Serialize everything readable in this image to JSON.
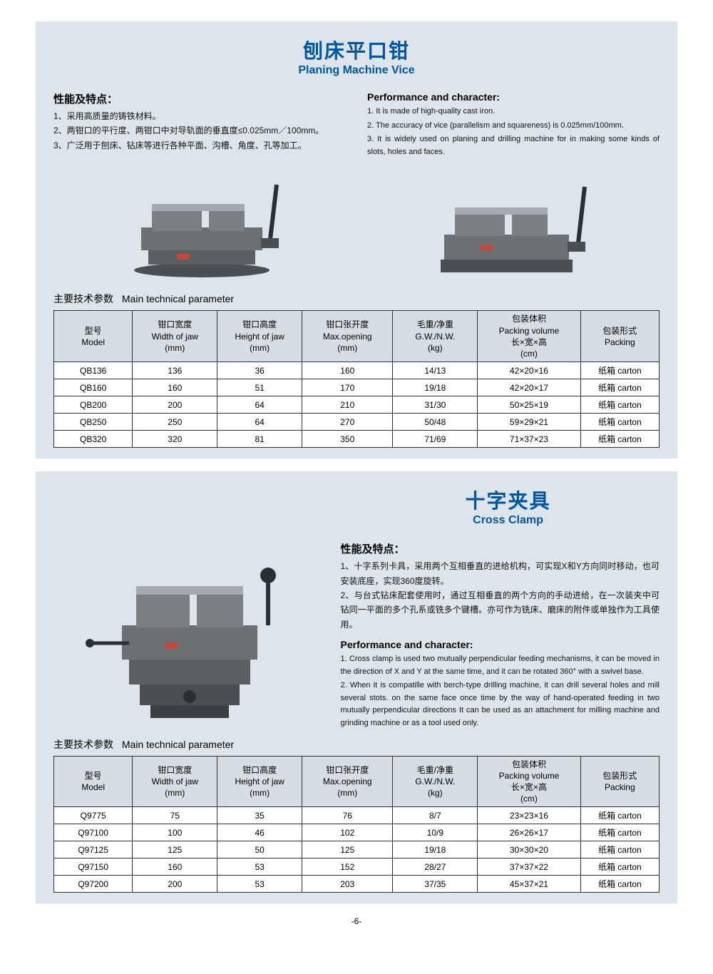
{
  "colors": {
    "section_bg": "#dde5ea",
    "title_color": "#0055a5",
    "table_header_bg": "#d6dde3",
    "table_border": "#333333",
    "text": "#111111",
    "page_bg": "#ffffff",
    "product_dark": "#3a3f44",
    "product_mid": "#6b7075",
    "product_light": "#a5aab0"
  },
  "typography": {
    "title_cn_size": 28,
    "title_en_size": 16,
    "body_size": 12,
    "caption_size": 14
  },
  "page_number": "-6-",
  "section1": {
    "title_cn": "刨床平口钳",
    "title_en": "Planing Machine Vice",
    "perf_cn_head": "性能及特点：",
    "perf_cn": [
      "1、采用高质量的铸铁材料。",
      "2、两钳口的平行度、两钳口中对导轨面的垂直度≤0.025mm／100mm。",
      "3、广泛用于刨床、钻床等进行各种平面、沟槽、角度、孔等加工。"
    ],
    "perf_en_head": "Performance and character:",
    "perf_en": [
      "1. It is made of high-quality cast iron.",
      "2. The accuracy of vice (parallelism and squareness) is 0.025mm/100mm.",
      "3. It is widely used on planing and drilling machine for in making some kinds of slots, holes and faces."
    ],
    "table_caption_cn": "主要技术参数",
    "table_caption_en": "Main technical parameter",
    "table": {
      "columns": [
        "型号\nModel",
        "钳口宽度\nWidth of jaw\n(mm)",
        "钳口高度\nHeight of jaw\n(mm)",
        "钳口张开度\nMax.opening\n(mm)",
        "毛重/净重\nG.W./N.W.\n(kg)",
        "包装体积\nPacking volume\n长×宽×高\n(cm)",
        "包装形式\nPacking"
      ],
      "widths_pct": [
        13,
        14,
        14,
        15,
        14,
        17,
        13
      ],
      "rows": [
        [
          "QB136",
          "136",
          "36",
          "160",
          "14/13",
          "42×20×16",
          "纸箱 carton"
        ],
        [
          "QB160",
          "160",
          "51",
          "170",
          "19/18",
          "42×20×17",
          "纸箱 carton"
        ],
        [
          "QB200",
          "200",
          "64",
          "210",
          "31/30",
          "50×25×19",
          "纸箱 carton"
        ],
        [
          "QB250",
          "250",
          "64",
          "270",
          "50/48",
          "59×29×21",
          "纸箱 carton"
        ],
        [
          "QB320",
          "320",
          "81",
          "350",
          "71/69",
          "71×37×23",
          "纸箱 carton"
        ]
      ]
    }
  },
  "section2": {
    "title_cn": "十字夹具",
    "title_en": "Cross Clamp",
    "perf_cn_head": "性能及特点：",
    "perf_cn": [
      "1、十字系列卡具，采用两个互相垂直的进给机构，可实现X和Y方向同时移动，也可安装底座，实现360度旋转。",
      "2、与台式钻床配套使用时，通过互相垂直的两个方向的手动进给，在一次装夹中可钻同一平面的多个孔系或铣多个键槽。亦可作为铣床、磨床的附件或单独作为工具使用。"
    ],
    "perf_en_head": "Performance and character:",
    "perf_en": [
      "1. Cross clamp is used two mutually perpendicular feeding mechanisms, it can be moved in the direction of X and Y at the same time, and it can be rotated 360° with a swivel base.",
      "2. When it is compatille with berch-type drilling machine, it can drill several holes and mill several stots. on the same face once time by the way of hand-operated feeding in two mutually perpendicular directions It can be used as an attachment for milling machine and grinding machine or as a tool used only."
    ],
    "table_caption_cn": "主要技术参数",
    "table_caption_en": "Main technical parameter",
    "table": {
      "columns": [
        "型号\nModel",
        "钳口宽度\nWidth of jaw\n(mm)",
        "钳口高度\nHeight of jaw\n(mm)",
        "钳口张开度\nMax.opening\n(mm)",
        "毛重/净重\nG.W./N.W.\n(kg)",
        "包装体积\nPacking volume\n长×宽×高\n(cm)",
        "包装形式\nPacking"
      ],
      "widths_pct": [
        13,
        14,
        14,
        15,
        14,
        17,
        13
      ],
      "rows": [
        [
          "Q9775",
          "75",
          "35",
          "76",
          "8/7",
          "23×23×16",
          "纸箱 carton"
        ],
        [
          "Q97100",
          "100",
          "46",
          "102",
          "10/9",
          "26×26×17",
          "纸箱 carton"
        ],
        [
          "Q97125",
          "125",
          "50",
          "125",
          "19/18",
          "30×30×20",
          "纸箱 carton"
        ],
        [
          "Q97150",
          "160",
          "53",
          "152",
          "28/27",
          "37×37×22",
          "纸箱 carton"
        ],
        [
          "Q97200",
          "200",
          "53",
          "203",
          "37/35",
          "45×37×21",
          "纸箱 carton"
        ]
      ]
    }
  }
}
